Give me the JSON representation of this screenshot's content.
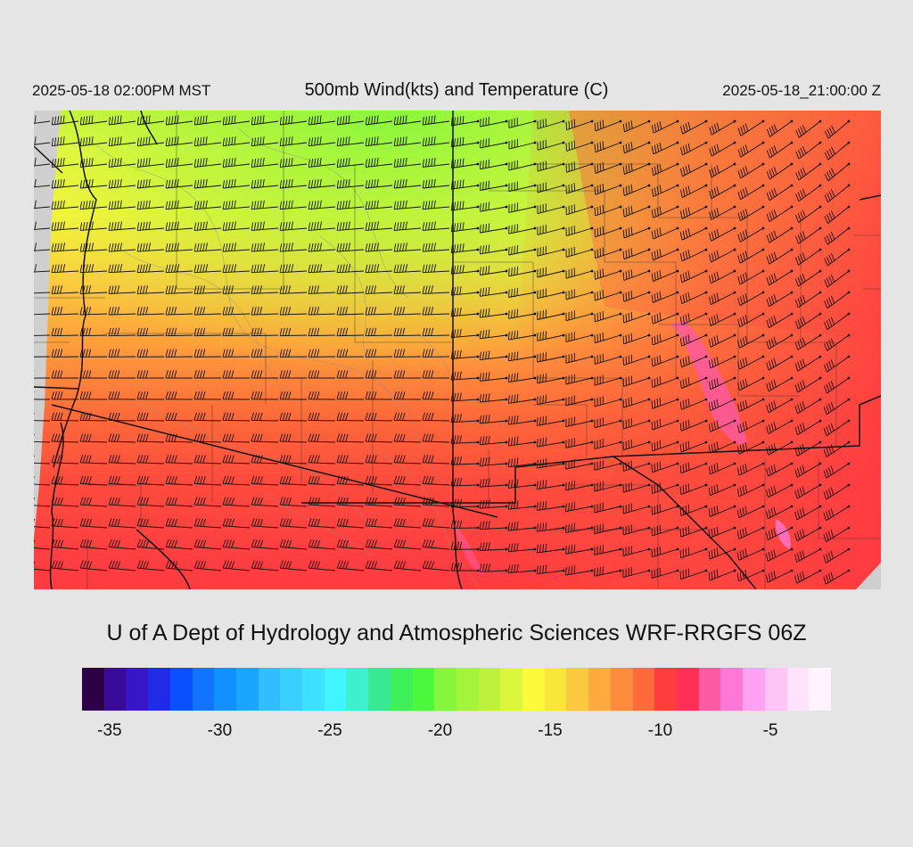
{
  "header": {
    "local_time": "2025-05-18 02:00PM MST",
    "title": "500mb Wind(kts) and Temperature (C)",
    "valid_time": "2025-05-18_21:00:00 Z"
  },
  "credit": "U of A Dept of Hydrology and Atmospheric Sciences WRF-RRGFS 06Z",
  "colorbar": {
    "colors": [
      "#2e0045",
      "#3a0a98",
      "#3716c8",
      "#1f2be6",
      "#0a50ff",
      "#1273ff",
      "#1290ff",
      "#1aa6ff",
      "#32bdff",
      "#3acffe",
      "#3ee0ff",
      "#40f5ff",
      "#3ef0cc",
      "#3ae894",
      "#3ef05a",
      "#4cf83c",
      "#86f63c",
      "#a4f43c",
      "#bef03e",
      "#dcf63e",
      "#fafa3a",
      "#f8e63a",
      "#fcc83e",
      "#ffaa3e",
      "#ff8c3c",
      "#ff6a3a",
      "#ff3f3f",
      "#ff3056",
      "#ff5aa4",
      "#ff78d6",
      "#ffa2f2",
      "#ffc4f6",
      "#ffe2fb",
      "#fff4ff"
    ],
    "labels": [
      {
        "text": "-35",
        "value": -35
      },
      {
        "text": "-30",
        "value": -30
      },
      {
        "text": "-25",
        "value": -25
      },
      {
        "text": "-20",
        "value": -20
      },
      {
        "text": "-15",
        "value": -15
      },
      {
        "text": "-10",
        "value": -10
      },
      {
        "text": "-5",
        "value": -5
      }
    ],
    "min": -36.25,
    "step": 1
  }
}
